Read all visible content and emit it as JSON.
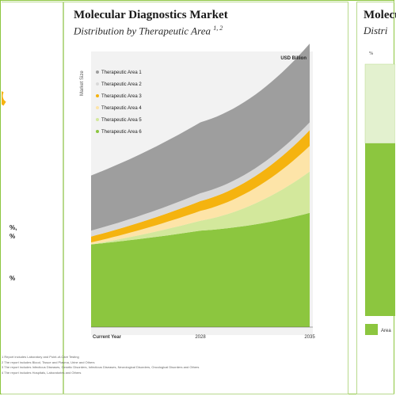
{
  "main": {
    "title": "Molecular Diagnostics Market",
    "subtitle": "Distribution by Therapeutic Area",
    "subtitle_sup": "1, 2"
  },
  "right": {
    "title": "Molecul",
    "subtitle": "Distri",
    "cap": "%"
  },
  "left": {
    "pct1": "%,",
    "pct2": "%",
    "pct3": "%"
  },
  "chart_data": {
    "type": "area",
    "stacked": true,
    "units_label": "USD Billion",
    "ylabel": "Market Size",
    "x": [
      "Current Year",
      "2028",
      "2035"
    ],
    "series": [
      {
        "name": "Therapeutic Area 6",
        "color": "#8cc63f",
        "values": [
          0.42,
          0.49,
          0.58
        ]
      },
      {
        "name": "Therapeutic Area 5",
        "color": "#d3e89c",
        "values": [
          0.0,
          0.05,
          0.21
        ]
      },
      {
        "name": "Therapeutic Area 4",
        "color": "#fde4a8",
        "values": [
          0.01,
          0.05,
          0.13
        ]
      },
      {
        "name": "Therapeutic Area 3",
        "color": "#f5b30f",
        "values": [
          0.03,
          0.05,
          0.08
        ]
      },
      {
        "name": "Therapeutic Area 2",
        "color": "#d9d9d9",
        "values": [
          0.03,
          0.04,
          0.04
        ]
      },
      {
        "name": "Therapeutic Area 1",
        "color": "#9e9e9e",
        "values": [
          0.28,
          0.36,
          0.4
        ]
      }
    ],
    "legend_order": [
      "Therapeutic Area 1",
      "Therapeutic Area 2",
      "Therapeutic Area 3",
      "Therapeutic Area 4",
      "Therapeutic Area 5",
      "Therapeutic Area 6"
    ],
    "legend_position": "top-left",
    "ylim": [
      0,
      1.4
    ],
    "grid": false
  },
  "right_chart": {
    "legend_label": "Area",
    "colors": {
      "top": "#e3f1cf",
      "bottom": "#8cc63f"
    }
  },
  "notes": [
    "1 Report includes Laboratory and Point-of-Care Testing",
    "2 The report includes Blood, Tissue and Plasma, Urine and Others",
    "3 The report includes Infectious Diseases, Genetic Disorders, Infectious Diseases, Neurological Disorders, Oncological Disorders and Others",
    "4 The report includes Hospitals, Laboratories and Others"
  ]
}
